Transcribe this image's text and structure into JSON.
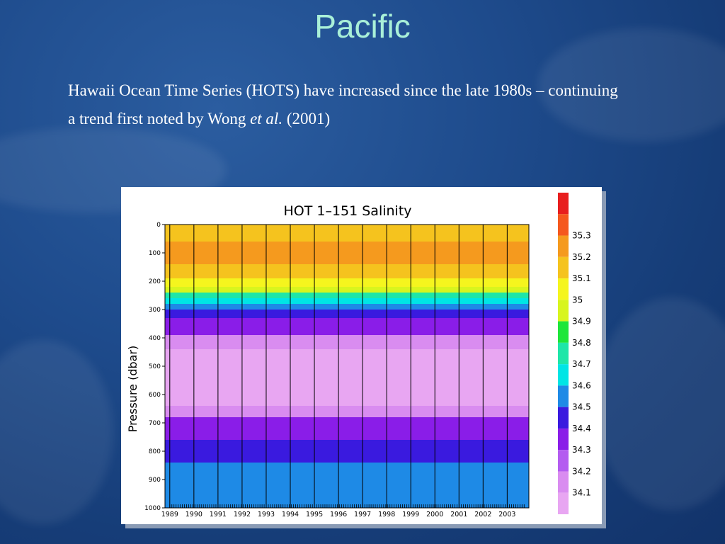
{
  "slide": {
    "title": "Pacific",
    "bullet_part1": "Hawaii Ocean Time Series (HOTS) have increased since the late 1980s – continuing a trend first noted by Wong ",
    "bullet_italic": "et al.",
    "bullet_part2": " (2001)"
  },
  "chart_data": {
    "type": "heatmap",
    "title": "HOT 1–151 Salinity",
    "xlabel": "",
    "ylabel": "Pressure (dbar)",
    "x_ticks": [
      "1989",
      "1990",
      "1991",
      "1992",
      "1993",
      "1994",
      "1995",
      "1996",
      "1997",
      "1998",
      "1999",
      "2000",
      "2001",
      "2002",
      "2003"
    ],
    "y_ticks": [
      0,
      100,
      200,
      300,
      400,
      500,
      600,
      700,
      800,
      900,
      1000
    ],
    "ylim": [
      1000,
      0
    ],
    "xlim": [
      1988.8,
      2003.9
    ],
    "legend_placement": "right",
    "levels": [
      {
        "value": "",
        "color": "#e8a6f2"
      },
      {
        "value": "34.1",
        "color": "#d98cf0"
      },
      {
        "value": "34.2",
        "color": "#b45cf0"
      },
      {
        "value": "34.3",
        "color": "#8a1de8"
      },
      {
        "value": "34.4",
        "color": "#3a1adf"
      },
      {
        "value": "34.5",
        "color": "#1e8ae6"
      },
      {
        "value": "34.6",
        "color": "#00e5e5"
      },
      {
        "value": "34.7",
        "color": "#1ee6a8"
      },
      {
        "value": "34.8",
        "color": "#1ee63a"
      },
      {
        "value": "34.9",
        "color": "#d8f51e"
      },
      {
        "value": "35",
        "color": "#f5f51e"
      },
      {
        "value": "35.1",
        "color": "#f5c31e"
      },
      {
        "value": "35.2",
        "color": "#f59a1e"
      },
      {
        "value": "35.3",
        "color": "#f5581e"
      },
      {
        "value": "",
        "color": "#e81e1e"
      }
    ],
    "depth_profile": [
      {
        "depth_top": 0,
        "depth_bottom": 60,
        "salinity": 35.15
      },
      {
        "depth_top": 60,
        "depth_bottom": 140,
        "salinity": 35.2
      },
      {
        "depth_top": 140,
        "depth_bottom": 190,
        "salinity": 35.1
      },
      {
        "depth_top": 190,
        "depth_bottom": 220,
        "salinity": 34.95
      },
      {
        "depth_top": 220,
        "depth_bottom": 240,
        "salinity": 34.85
      },
      {
        "depth_top": 240,
        "depth_bottom": 260,
        "salinity": 34.7
      },
      {
        "depth_top": 260,
        "depth_bottom": 280,
        "salinity": 34.6
      },
      {
        "depth_top": 280,
        "depth_bottom": 300,
        "salinity": 34.45
      },
      {
        "depth_top": 300,
        "depth_bottom": 330,
        "salinity": 34.35
      },
      {
        "depth_top": 330,
        "depth_bottom": 390,
        "salinity": 34.25
      },
      {
        "depth_top": 390,
        "depth_bottom": 440,
        "salinity": 34.15
      },
      {
        "depth_top": 440,
        "depth_bottom": 640,
        "salinity": 34.05
      },
      {
        "depth_top": 640,
        "depth_bottom": 680,
        "salinity": 34.15
      },
      {
        "depth_top": 680,
        "depth_bottom": 760,
        "salinity": 34.25
      },
      {
        "depth_top": 760,
        "depth_bottom": 840,
        "salinity": 34.35
      },
      {
        "depth_top": 840,
        "depth_bottom": 1000,
        "salinity": 34.45
      }
    ]
  }
}
